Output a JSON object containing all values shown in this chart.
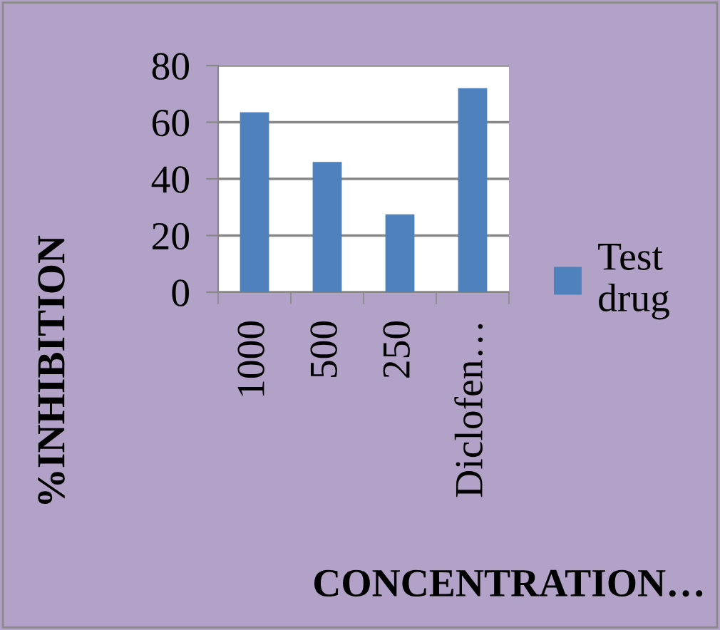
{
  "chart_data": {
    "type": "bar",
    "xlabel": "CONCENTRATION…",
    "ylabel": "%INHIBITION",
    "categories": [
      "1000",
      "500",
      "250",
      "Diclofen…"
    ],
    "series": [
      {
        "name": "Test drug",
        "color": "#4f81bd",
        "values": [
          63.5,
          46,
          27.5,
          72
        ]
      }
    ],
    "ylim": [
      0,
      80
    ],
    "yticks": [
      0,
      20,
      40,
      60,
      80
    ],
    "grid": "y",
    "legend": "right"
  }
}
